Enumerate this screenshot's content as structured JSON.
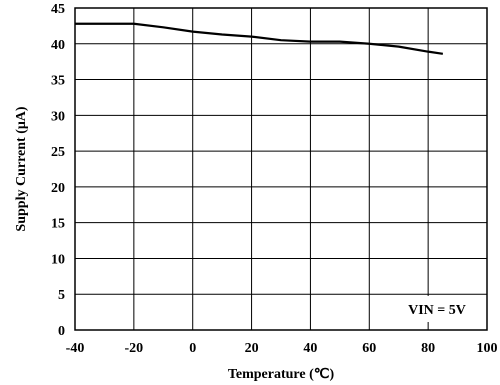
{
  "chart_data": {
    "type": "line",
    "xlabel": "Temperature (℃)",
    "ylabel": "Supply Current (μA)",
    "xlim": [
      -40,
      100
    ],
    "ylim": [
      0,
      45
    ],
    "x_ticks": [
      -40,
      -20,
      0,
      20,
      40,
      60,
      80,
      100
    ],
    "y_ticks": [
      0,
      5,
      10,
      15,
      20,
      25,
      30,
      35,
      40,
      45
    ],
    "grid": true,
    "annotation": "VIN = 5V",
    "series": [
      {
        "x": [
          -40,
          -30,
          -20,
          -10,
          0,
          10,
          20,
          30,
          40,
          50,
          60,
          70,
          80,
          85
        ],
        "y": [
          42.8,
          42.8,
          42.8,
          42.3,
          41.7,
          41.3,
          41.0,
          40.5,
          40.3,
          40.3,
          40.0,
          39.6,
          38.9,
          38.6
        ]
      }
    ]
  }
}
